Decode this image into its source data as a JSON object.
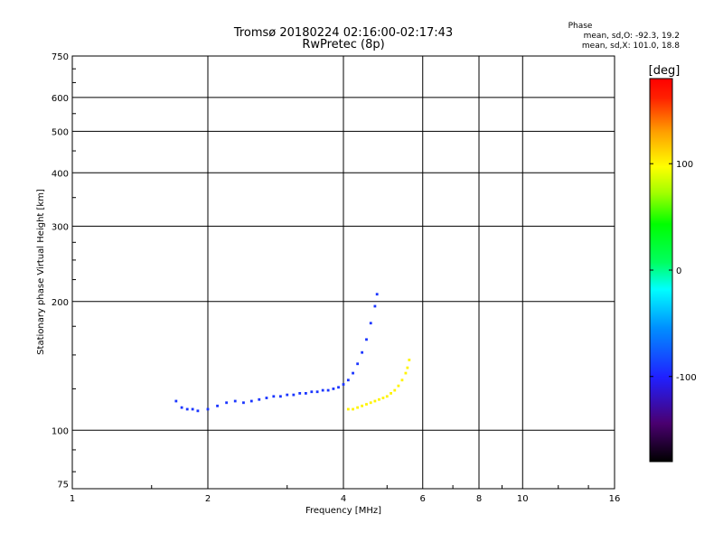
{
  "chart_data": {
    "type": "scatter",
    "title": "Tromsø 20180224 02:16:00-02:17:43",
    "subtitle": "RwPretec (8p)",
    "xlabel": "Frequency [MHz]",
    "ylabel": "Stationary phase Virtual Height [km]",
    "x_scale": "log",
    "y_scale": "log",
    "xlim": [
      1,
      16
    ],
    "ylim": [
      73,
      750
    ],
    "x_ticks": [
      1,
      2,
      4,
      6,
      8,
      10,
      16
    ],
    "y_ticks": [
      75,
      100,
      200,
      300,
      400,
      500,
      600,
      750
    ],
    "grid": true,
    "stats": {
      "heading": "Phase",
      "line1": "mean, sd,O: -92.3, 19.2",
      "line2": "mean, sd,X: 101.0, 18.8"
    },
    "colorbar": {
      "label": "[deg]",
      "range": [
        -180,
        180
      ],
      "ticks": [
        100,
        0,
        -100
      ],
      "colormap": "rainbow"
    },
    "o_trace": {
      "phase": -92,
      "points": [
        [
          1.7,
          117
        ],
        [
          1.75,
          113
        ],
        [
          1.8,
          112
        ],
        [
          1.85,
          112
        ],
        [
          1.9,
          111
        ],
        [
          2.0,
          112
        ],
        [
          2.1,
          114
        ],
        [
          2.2,
          116
        ],
        [
          2.3,
          117
        ],
        [
          2.4,
          116
        ],
        [
          2.5,
          117
        ],
        [
          2.6,
          118
        ],
        [
          2.7,
          119
        ],
        [
          2.8,
          120
        ],
        [
          2.9,
          120
        ],
        [
          3.0,
          121
        ],
        [
          3.1,
          121
        ],
        [
          3.2,
          122
        ],
        [
          3.3,
          122
        ],
        [
          3.4,
          123
        ],
        [
          3.5,
          123
        ],
        [
          3.6,
          124
        ],
        [
          3.7,
          124
        ],
        [
          3.8,
          125
        ],
        [
          3.9,
          126
        ],
        [
          4.0,
          128
        ],
        [
          4.1,
          131
        ],
        [
          4.2,
          136
        ],
        [
          4.3,
          143
        ],
        [
          4.4,
          152
        ],
        [
          4.5,
          163
        ],
        [
          4.6,
          178
        ],
        [
          4.7,
          195
        ],
        [
          4.75,
          208
        ]
      ]
    },
    "x_trace": {
      "phase": 101,
      "points": [
        [
          4.1,
          112
        ],
        [
          4.2,
          112
        ],
        [
          4.3,
          113
        ],
        [
          4.4,
          114
        ],
        [
          4.5,
          115
        ],
        [
          4.6,
          116
        ],
        [
          4.7,
          117
        ],
        [
          4.8,
          118
        ],
        [
          4.9,
          119
        ],
        [
          5.0,
          120
        ],
        [
          5.1,
          122
        ],
        [
          5.2,
          124
        ],
        [
          5.3,
          127
        ],
        [
          5.4,
          131
        ],
        [
          5.5,
          136
        ],
        [
          5.55,
          140
        ],
        [
          5.6,
          146
        ]
      ]
    }
  }
}
